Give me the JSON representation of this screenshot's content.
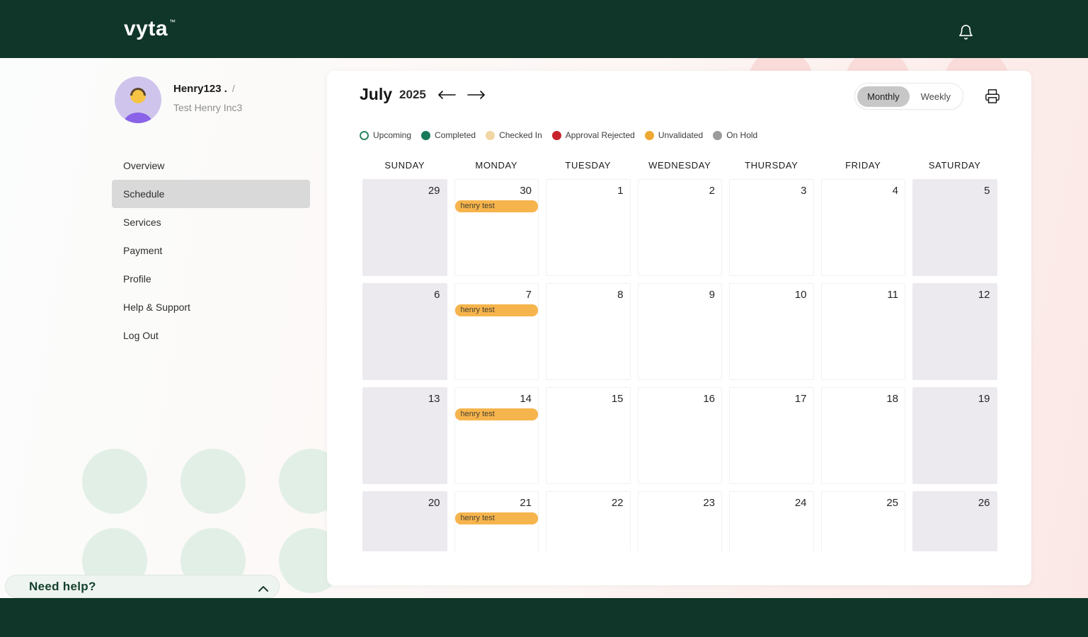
{
  "theme": {
    "brand_dark_green": "#0f3628",
    "event_color": "#f6b44c",
    "selected_pill_gray": "#c7c7c7",
    "weekend_cell": "#eceaef"
  },
  "header": {
    "logo": "vyta",
    "logo_tm": "™"
  },
  "profile": {
    "name": "Henry123 .",
    "name_suffix": "/",
    "company": "Test Henry Inc3"
  },
  "sidebar": {
    "items": [
      {
        "label": "Overview",
        "selected": false
      },
      {
        "label": "Schedule",
        "selected": true
      },
      {
        "label": "Services",
        "selected": false
      },
      {
        "label": "Payment",
        "selected": false
      },
      {
        "label": "Profile",
        "selected": false
      },
      {
        "label": "Help & Support",
        "selected": false
      },
      {
        "label": "Log Out",
        "selected": false
      }
    ]
  },
  "calendar": {
    "month": "July",
    "year": "2025",
    "views": [
      {
        "label": "Monthly",
        "selected": true
      },
      {
        "label": "Weekly",
        "selected": false
      }
    ],
    "legend": [
      {
        "label": "Upcoming",
        "fill": "#ffffff",
        "border": "#2f8561"
      },
      {
        "label": "Completed",
        "fill": "#18795b",
        "border": "#18795b"
      },
      {
        "label": "Checked In",
        "fill": "#f2d5a4",
        "border": "#f2d5a4"
      },
      {
        "label": "Approval Rejected",
        "fill": "#c8232c",
        "border": "#c8232c"
      },
      {
        "label": "Unvalidated",
        "fill": "#efa832",
        "border": "#efa832"
      },
      {
        "label": "On Hold",
        "fill": "#9b9b9b",
        "border": "#9b9b9b"
      }
    ],
    "day_headers": [
      "Sunday",
      "Monday",
      "Tuesday",
      "Wednesday",
      "Thursday",
      "Friday",
      "Saturday"
    ],
    "weeks": [
      {
        "days": [
          {
            "num": "29",
            "weekend": true,
            "events": []
          },
          {
            "num": "30",
            "weekend": false,
            "events": [
              "henry test"
            ]
          },
          {
            "num": "1",
            "weekend": false,
            "events": []
          },
          {
            "num": "2",
            "weekend": false,
            "events": []
          },
          {
            "num": "3",
            "weekend": false,
            "events": []
          },
          {
            "num": "4",
            "weekend": false,
            "events": []
          },
          {
            "num": "5",
            "weekend": true,
            "events": []
          }
        ]
      },
      {
        "days": [
          {
            "num": "6",
            "weekend": true,
            "events": []
          },
          {
            "num": "7",
            "weekend": false,
            "events": [
              "henry test"
            ]
          },
          {
            "num": "8",
            "weekend": false,
            "events": []
          },
          {
            "num": "9",
            "weekend": false,
            "events": []
          },
          {
            "num": "10",
            "weekend": false,
            "events": []
          },
          {
            "num": "11",
            "weekend": false,
            "events": []
          },
          {
            "num": "12",
            "weekend": true,
            "events": []
          }
        ]
      },
      {
        "days": [
          {
            "num": "13",
            "weekend": true,
            "events": []
          },
          {
            "num": "14",
            "weekend": false,
            "events": [
              "henry test"
            ]
          },
          {
            "num": "15",
            "weekend": false,
            "events": []
          },
          {
            "num": "16",
            "weekend": false,
            "events": []
          },
          {
            "num": "17",
            "weekend": false,
            "events": []
          },
          {
            "num": "18",
            "weekend": false,
            "events": []
          },
          {
            "num": "19",
            "weekend": true,
            "events": []
          }
        ]
      },
      {
        "days": [
          {
            "num": "20",
            "weekend": true,
            "events": []
          },
          {
            "num": "21",
            "weekend": false,
            "events": [
              "henry test"
            ]
          },
          {
            "num": "22",
            "weekend": false,
            "events": []
          },
          {
            "num": "23",
            "weekend": false,
            "events": []
          },
          {
            "num": "24",
            "weekend": false,
            "events": []
          },
          {
            "num": "25",
            "weekend": false,
            "events": []
          },
          {
            "num": "26",
            "weekend": true,
            "events": []
          }
        ]
      }
    ]
  },
  "help": {
    "label": "Need help?"
  }
}
